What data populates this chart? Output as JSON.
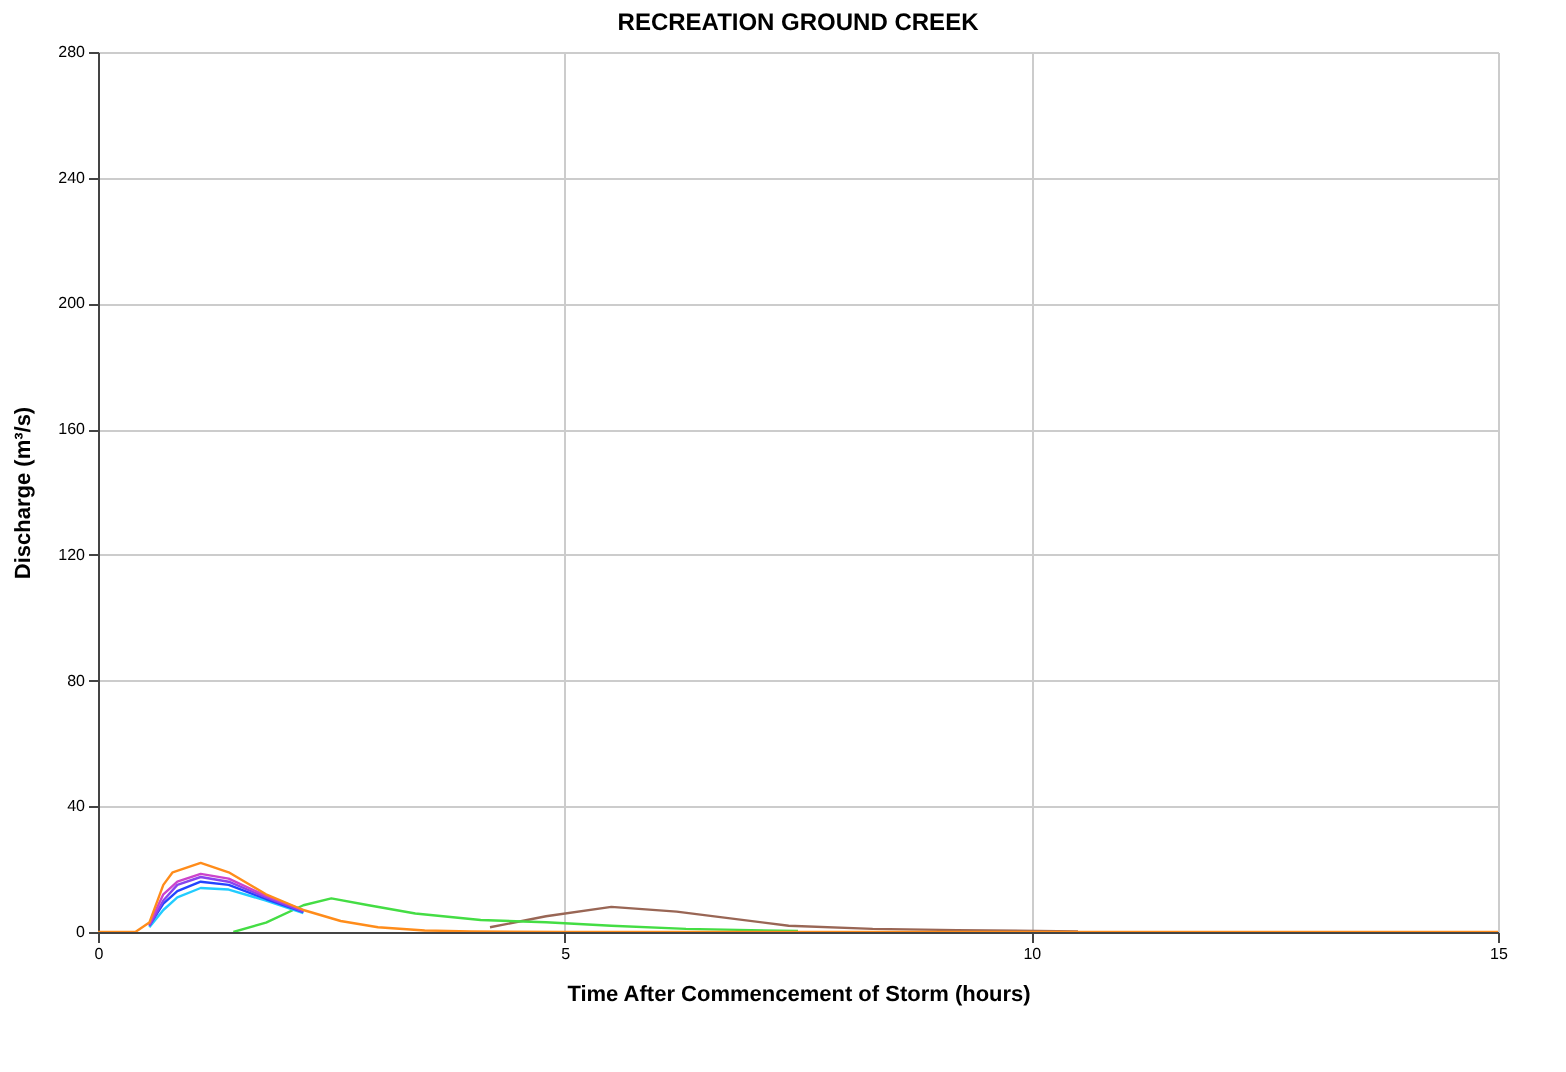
{
  "chart_data": {
    "type": "line",
    "title": "RECREATION GROUND CREEK",
    "xlabel": "Time After Commencement of Storm (hours)",
    "ylabel": "Discharge (m³/s)",
    "xlim": [
      0,
      15
    ],
    "xticks": [
      0,
      5,
      10,
      15
    ],
    "ylim": [
      0,
      280
    ],
    "yticks": [
      0,
      40,
      80,
      120,
      160,
      200,
      240,
      280
    ],
    "grid": true,
    "marker": "none",
    "line_style": "solid",
    "series": [
      {
        "color": "#ff8c1a",
        "x": [
          0,
          0.4,
          0.55,
          0.7,
          0.8,
          1.1,
          1.4,
          1.8,
          2.2,
          2.6,
          3,
          3.5,
          4,
          5,
          15
        ],
        "values": [
          0,
          0,
          3,
          15,
          19,
          22,
          19,
          12,
          7,
          3.5,
          1.5,
          0.5,
          0.2,
          0,
          0
        ]
      },
      {
        "color": "#cc44cc",
        "x": [
          0.55,
          0.7,
          0.85,
          1.1,
          1.4,
          1.8,
          2.2
        ],
        "values": [
          2.5,
          12,
          16,
          18.5,
          17,
          11.5,
          7
        ]
      },
      {
        "color": "#8844ee",
        "x": [
          0.55,
          0.7,
          0.85,
          1.1,
          1.4,
          1.8,
          2.2
        ],
        "values": [
          2,
          10,
          15,
          17.5,
          16,
          11,
          6.5
        ]
      },
      {
        "color": "#2244ff",
        "x": [
          0.55,
          0.7,
          0.85,
          1.1,
          1.4,
          1.8,
          2.2
        ],
        "values": [
          2,
          9,
          13,
          16,
          15,
          10.5,
          6.3
        ]
      },
      {
        "color": "#22ccff",
        "x": [
          0.55,
          0.7,
          0.85,
          1.1,
          1.4,
          1.8,
          2.2
        ],
        "values": [
          1.5,
          7,
          11,
          14,
          13.5,
          10,
          6
        ]
      },
      {
        "color": "#44dd44",
        "x": [
          1.45,
          1.8,
          2.2,
          2.5,
          2.9,
          3.4,
          4.1,
          4.8,
          5.5,
          6.3,
          7.5
        ],
        "values": [
          0,
          3,
          8.5,
          10.7,
          8.5,
          5.9,
          3.8,
          3.1,
          2,
          1,
          0.3
        ]
      },
      {
        "color": "#996655",
        "x": [
          4.2,
          4.8,
          5.5,
          6.2,
          7.4,
          8.3,
          9.2,
          10.5
        ],
        "values": [
          1.5,
          5,
          8,
          6.5,
          2,
          1,
          0.6,
          0.2
        ]
      }
    ]
  }
}
